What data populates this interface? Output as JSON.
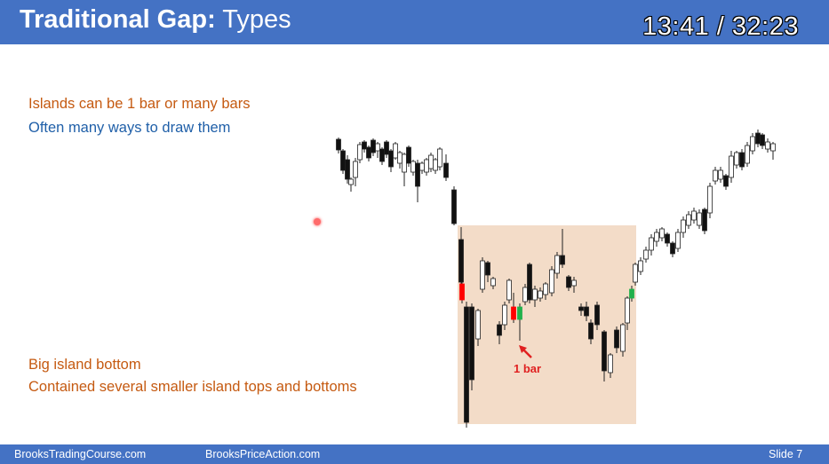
{
  "header": {
    "title_bold": "Traditional Gap:",
    "title_rest": " Types",
    "timer": "13:41 / 32:23"
  },
  "notes": {
    "line1": "Islands can be 1 bar or many bars",
    "line2": "Often many ways to draw them",
    "line3": "Big island bottom",
    "line4": "Contained several smaller island tops and bottoms"
  },
  "annotation": {
    "label": "1 bar"
  },
  "footer": {
    "left": "BrooksTradingCourse.com",
    "center": "BrooksPriceAction.com",
    "right": "Slide 7"
  },
  "colors": {
    "header_bg": "#4472c4",
    "island_highlight": "#f3dcc8",
    "gap_bar_red": "#ff0000",
    "gap_bar_green": "#22b14c",
    "annotation_red": "#e02020",
    "text_orange": "#c55a11",
    "text_blue": "#1f5fa8"
  }
}
